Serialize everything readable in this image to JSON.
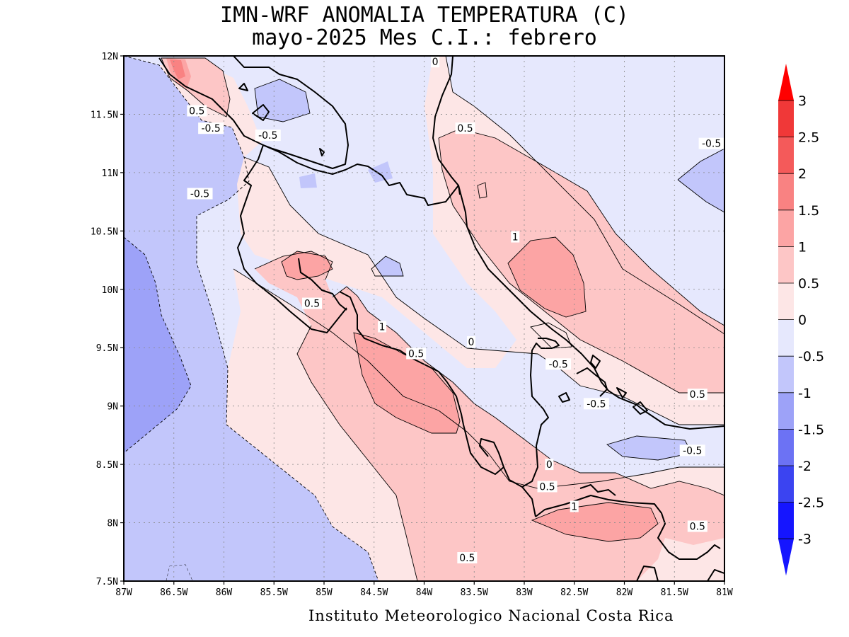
{
  "title_line1": "IMN-WRF  ANOMALIA TEMPERATURA (C)",
  "title_line2": "mayo-2025 Mes C.I.: febrero",
  "footer": "Instituto Meteorologico Nacional Costa Rica",
  "map": {
    "lon_range": [
      -87,
      -81
    ],
    "lat_range": [
      7.5,
      12
    ],
    "lon_ticks": [
      "87W",
      "86.5W",
      "86W",
      "85.5W",
      "85W",
      "84.5W",
      "84W",
      "83.5W",
      "83W",
      "82.5W",
      "82W",
      "81.5W",
      "81W"
    ],
    "lat_ticks": [
      "7.5N",
      "8N",
      "8.5N",
      "9N",
      "9.5N",
      "10N",
      "10.5N",
      "11N",
      "11.5N",
      "12N"
    ],
    "grid": true,
    "contour_labels": [
      {
        "text": "0.5",
        "lon": -86.27,
        "lat": 11.53
      },
      {
        "text": "-0.5",
        "lon": -86.13,
        "lat": 11.38
      },
      {
        "text": "-0.5",
        "lon": -85.56,
        "lat": 11.32
      },
      {
        "text": "-0.5",
        "lon": -86.24,
        "lat": 10.82
      },
      {
        "text": "0",
        "lon": -83.89,
        "lat": 11.95
      },
      {
        "text": "0.5",
        "lon": -83.59,
        "lat": 11.38
      },
      {
        "text": "-0.5",
        "lon": -81.13,
        "lat": 11.25
      },
      {
        "text": "1",
        "lon": -83.09,
        "lat": 10.45
      },
      {
        "text": "0.5",
        "lon": -85.12,
        "lat": 9.88
      },
      {
        "text": "1",
        "lon": -84.42,
        "lat": 9.68
      },
      {
        "text": "0.5",
        "lon": -84.08,
        "lat": 9.45
      },
      {
        "text": "0",
        "lon": -83.53,
        "lat": 9.55
      },
      {
        "text": "-0.5",
        "lon": -82.66,
        "lat": 9.36
      },
      {
        "text": "0.5",
        "lon": -81.27,
        "lat": 9.1
      },
      {
        "text": "-0.5",
        "lon": -82.28,
        "lat": 9.02
      },
      {
        "text": "-0.5",
        "lon": -81.32,
        "lat": 8.62
      },
      {
        "text": "0",
        "lon": -82.75,
        "lat": 8.5
      },
      {
        "text": "0.5",
        "lon": -82.77,
        "lat": 8.31
      },
      {
        "text": "1",
        "lon": -82.5,
        "lat": 8.14
      },
      {
        "text": "0.5",
        "lon": -81.27,
        "lat": 7.97
      },
      {
        "text": "0.5",
        "lon": -83.57,
        "lat": 7.7
      }
    ]
  },
  "colorbar": {
    "labels": [
      "3",
      "2.5",
      "2",
      "1.5",
      "1",
      "0.5",
      "0",
      "-0.5",
      "-1",
      "-1.5",
      "-2",
      "-2.5",
      "-3"
    ],
    "colors": [
      "#ff0000",
      "#f03838",
      "#f45a5a",
      "#f98282",
      "#fca4a4",
      "#fdc6c6",
      "#fde6e6",
      "#e6e8fd",
      "#c2c6fb",
      "#9da2f8",
      "#6c72f4",
      "#3b44f1",
      "#1515ff"
    ]
  },
  "colors": {
    "neg_1": "#c2c6fb",
    "neg_05": "#e6e8fd",
    "pos_0": "#fde6e6",
    "pos_05": "#fdc6c6",
    "pos_1": "#fca4a4",
    "neg_15": "#9da2f8",
    "pos_15": "#f98282"
  }
}
